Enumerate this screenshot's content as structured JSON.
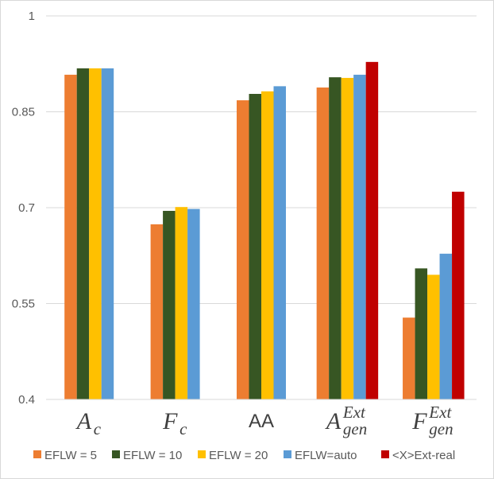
{
  "chart_data": {
    "type": "bar",
    "title": "",
    "xlabel": "",
    "ylabel": "",
    "ylim": [
      0.4,
      1.0
    ],
    "yticks": [
      {
        "value": 0.4,
        "label": "0.4"
      },
      {
        "value": 0.55,
        "label": "0.55"
      },
      {
        "value": 0.7,
        "label": "0.7"
      },
      {
        "value": 0.85,
        "label": "0.85"
      },
      {
        "value": 1.0,
        "label": "1"
      }
    ],
    "categories": [
      {
        "id": "Ac",
        "base": "A",
        "sub": "c",
        "sup": ""
      },
      {
        "id": "Fc",
        "base": "F",
        "sub": "c",
        "sup": ""
      },
      {
        "id": "AA",
        "plain": "AA"
      },
      {
        "id": "AgenExt",
        "base": "A",
        "sub": "gen",
        "sup": "Ext"
      },
      {
        "id": "FgenExt",
        "base": "F",
        "sub": "gen",
        "sup": "Ext"
      }
    ],
    "series": [
      {
        "name": "EFLW = 5",
        "color": "#ed7d31",
        "values": [
          0.908,
          0.674,
          0.868,
          0.888,
          0.528
        ]
      },
      {
        "name": "EFLW = 10",
        "color": "#375623",
        "values": [
          0.918,
          0.695,
          0.878,
          0.904,
          0.605
        ]
      },
      {
        "name": "EFLW = 20",
        "color": "#ffc000",
        "values": [
          0.918,
          0.701,
          0.882,
          0.903,
          0.595
        ]
      },
      {
        "name": "EFLW=auto",
        "color": "#5b9bd5",
        "values": [
          0.918,
          0.698,
          0.89,
          0.908,
          0.628
        ]
      },
      {
        "name": "<X>Ext-real",
        "color": "#c00000",
        "values": [
          null,
          null,
          null,
          0.928,
          0.725
        ]
      }
    ],
    "legend_position": "bottom",
    "grid": true
  }
}
